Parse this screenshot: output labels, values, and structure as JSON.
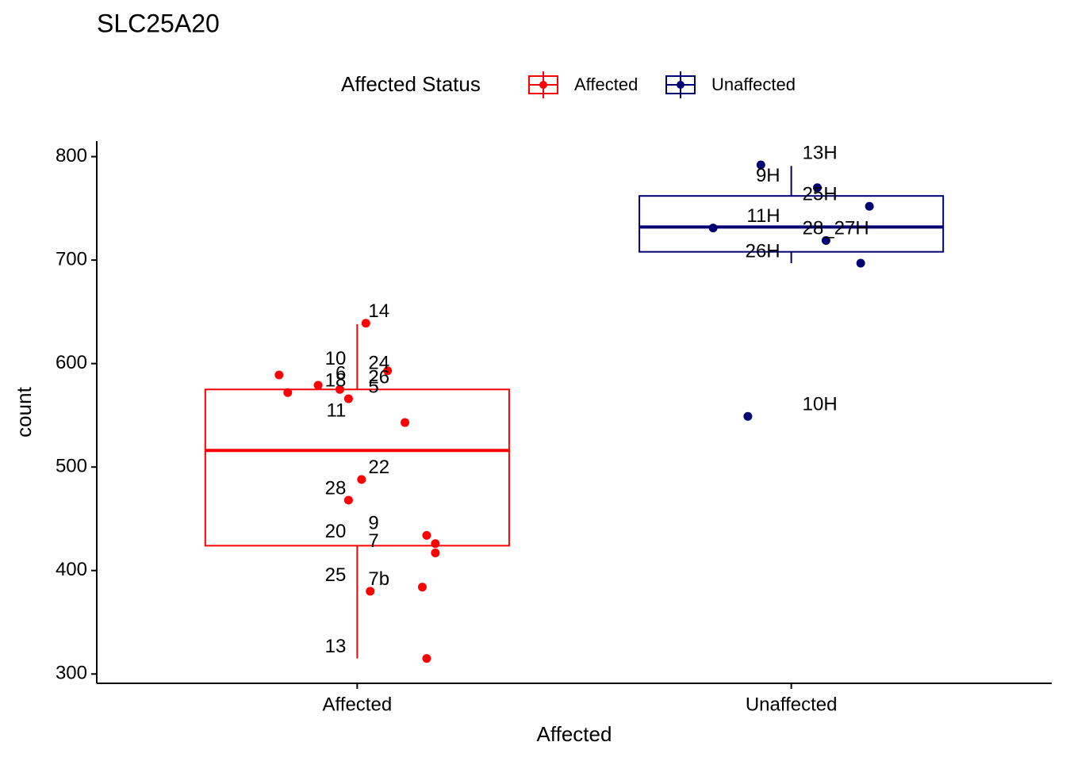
{
  "chart_data": {
    "type": "box",
    "title": "SLC25A20",
    "x_label": "Affected",
    "y_label": "count",
    "legend_title": "Affected Status",
    "categories": [
      "Affected",
      "Unaffected"
    ],
    "xlim": [
      0.4,
      2.6
    ],
    "ylim": [
      291,
      815
    ],
    "yticks": [
      300,
      400,
      500,
      600,
      700,
      800
    ],
    "series": [
      {
        "name": "Affected",
        "color": "#ff0000",
        "box": {
          "whisker_low": 315,
          "q1": 424,
          "median": 516,
          "q3": 575,
          "whisker_high": 638
        },
        "points": {
          "x": [
            1.02,
            1.07,
            0.82,
            0.91,
            0.96,
            0.84,
            0.98,
            1.11,
            1.01,
            0.98,
            1.16,
            1.18,
            1.18,
            1.15,
            1.03,
            1.16
          ],
          "y": [
            639,
            593,
            589,
            579,
            575,
            572,
            566,
            543,
            488,
            468,
            434,
            426,
            417,
            384,
            380,
            315
          ],
          "labels": [
            "14",
            "10",
            "24",
            "6",
            "26",
            "18",
            "5",
            "11",
            "22",
            "28",
            "9",
            "20",
            "7",
            "25",
            "7b",
            "13"
          ]
        }
      },
      {
        "name": "Unaffected",
        "color": "#000073",
        "box": {
          "whisker_low": 697,
          "q1": 708,
          "median": 732,
          "q3": 762,
          "whisker_high": 791
        },
        "points": {
          "x": [
            1.93,
            2.06,
            2.18,
            1.82,
            2.08,
            2.16,
            1.9
          ],
          "y": [
            792,
            770,
            752,
            731,
            719,
            697,
            549
          ],
          "labels": [
            "13H",
            "9H",
            "25H",
            "11H",
            "28_27H",
            "26H",
            "10H"
          ]
        }
      }
    ]
  }
}
